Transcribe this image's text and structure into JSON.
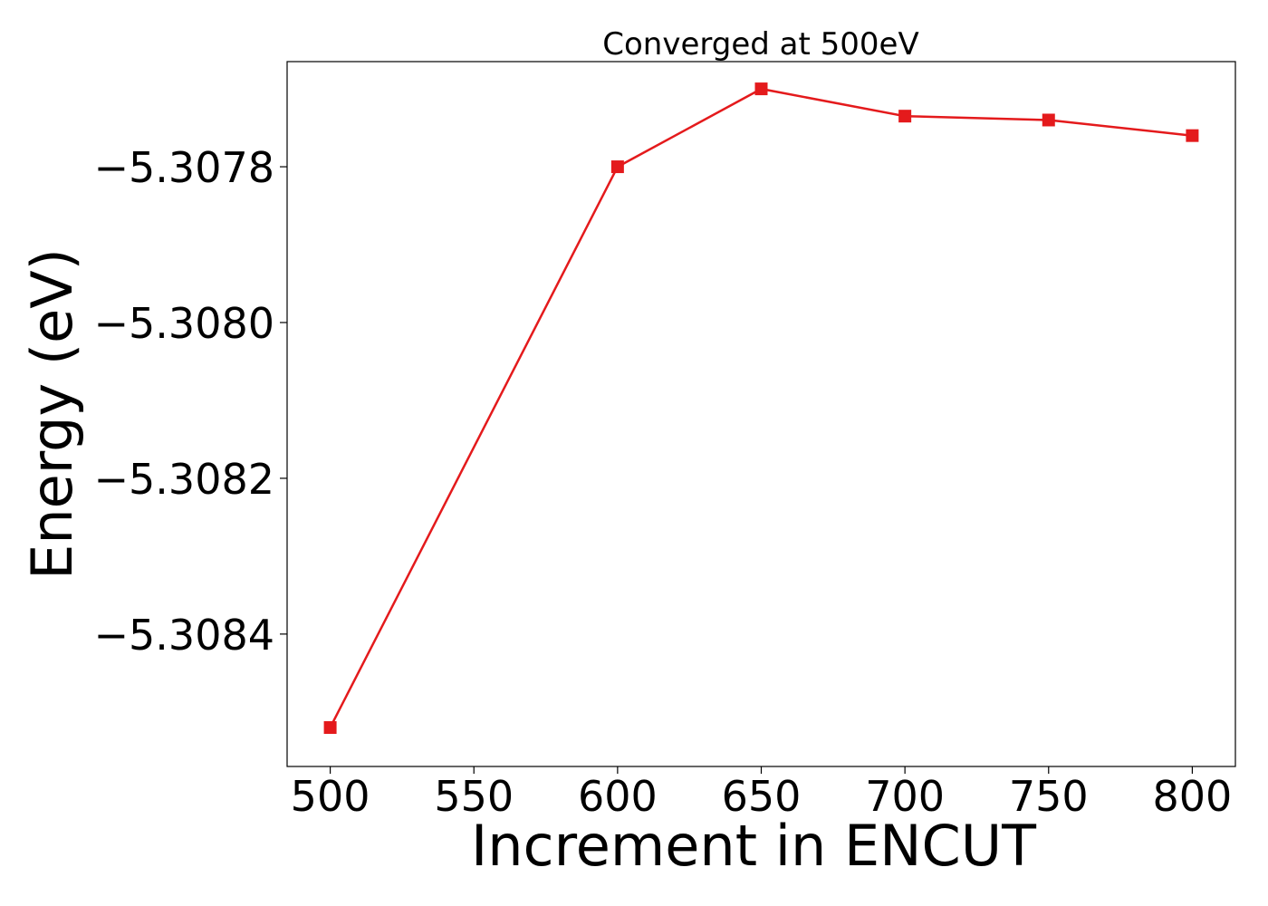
{
  "chart_data": {
    "type": "line",
    "title": "Converged at 500eV",
    "xlabel": "Increment in ENCUT",
    "ylabel": "Energy (eV)",
    "x": [
      500,
      600,
      650,
      700,
      750,
      800
    ],
    "y": [
      -5.30852,
      -5.3078,
      -5.3077,
      -5.307735,
      -5.30774,
      -5.30776
    ],
    "xticks": [
      500,
      550,
      600,
      650,
      700,
      750,
      800
    ],
    "xtick_labels": [
      "500",
      "550",
      "600",
      "650",
      "700",
      "750",
      "800"
    ],
    "yticks": [
      -5.3078,
      -5.308,
      -5.3082,
      -5.3084
    ],
    "ytick_labels": [
      "−5.3078",
      "−5.3080",
      "−5.3082",
      "−5.3084"
    ],
    "xlim": [
      485,
      815
    ],
    "ylim": [
      -5.30857,
      -5.307665
    ],
    "grid": false,
    "marker": "square",
    "color": "#e41a1c"
  }
}
